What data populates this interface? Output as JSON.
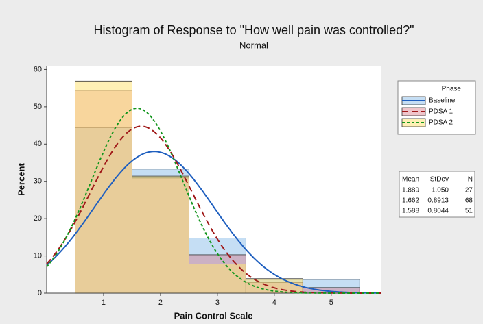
{
  "chart_data": {
    "type": "histogram",
    "title": "Histogram of Response to \"How well pain was controlled?\"",
    "subtitle": "Normal",
    "x_label": "Pain Control Scale",
    "y_label": "Percent",
    "bins": [
      0.5,
      1.5,
      2.5,
      3.5,
      4.5,
      5.5
    ],
    "xlim": [
      0,
      5.87
    ],
    "xticks": [
      1,
      2,
      3,
      4,
      5
    ],
    "ylim": [
      0,
      61
    ],
    "yticks": [
      0,
      10,
      20,
      30,
      40,
      50,
      60
    ],
    "legend_title": "Phase",
    "stats_headers": [
      "Mean",
      "StDev",
      "N"
    ],
    "series": [
      {
        "name": "Baseline",
        "color": "#1f5fbf",
        "fill": "rgba(150,195,235,0.55)",
        "dash": "none",
        "values": [
          44.4,
          33.3,
          14.8,
          3.7,
          3.7
        ],
        "mean": 1.889,
        "stdev": {
          "value": 1.05,
          "label": "1.050"
        },
        "n": 27
      },
      {
        "name": "PDSA 1",
        "color": "#a01818",
        "fill": "rgba(215,110,125,0.4)",
        "dash": "9 5",
        "values": [
          54.4,
          30.9,
          10.3,
          2.9,
          1.5
        ],
        "mean": 1.662,
        "stdev": 0.8913,
        "n": 68
      },
      {
        "name": "PDSA 2",
        "color": "#14961e",
        "fill": "rgba(255,228,120,0.55)",
        "dash": "4 3",
        "values": [
          56.9,
          31.4,
          7.8,
          3.9,
          0
        ],
        "mean": 1.588,
        "stdev": 0.8044,
        "n": 51
      }
    ]
  }
}
